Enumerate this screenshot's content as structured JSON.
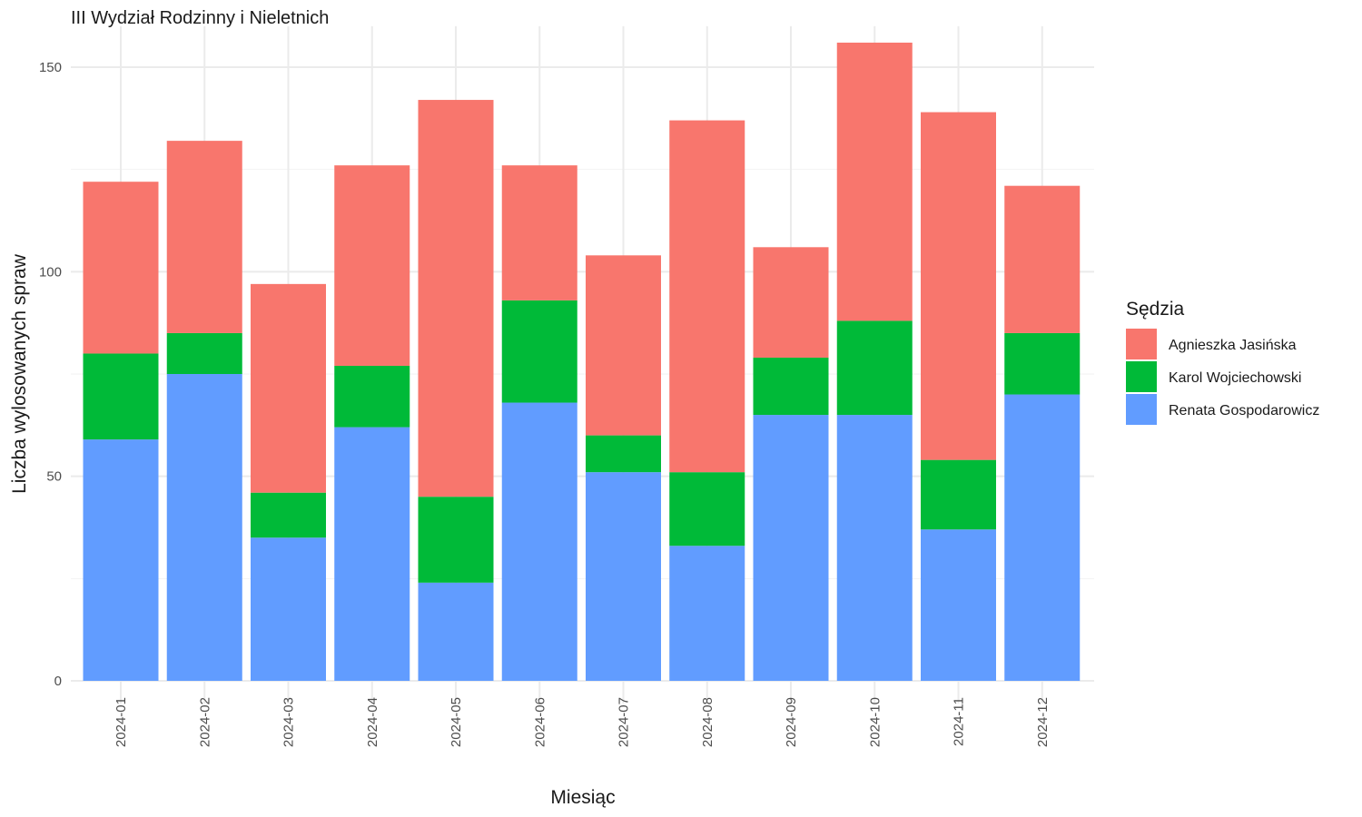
{
  "chart_data": {
    "type": "bar",
    "stacked": true,
    "title": "III Wydział Rodzinny i Nieletnich",
    "xlabel": "Miesiąc",
    "ylabel": "Liczba wylosowanych spraw",
    "ylim": [
      0,
      160
    ],
    "yticks": [
      0,
      50,
      100,
      150
    ],
    "grid": true,
    "legend_title": "Sędzia",
    "legend_position": "right",
    "categories": [
      "2024-01",
      "2024-02",
      "2024-03",
      "2024-04",
      "2024-05",
      "2024-06",
      "2024-07",
      "2024-08",
      "2024-09",
      "2024-10",
      "2024-11",
      "2024-12"
    ],
    "series": [
      {
        "name": "Renata Gospodarowicz",
        "color": "#619CFF",
        "values": [
          59,
          75,
          35,
          62,
          24,
          68,
          51,
          33,
          65,
          65,
          37,
          70
        ]
      },
      {
        "name": "Karol Wojciechowski",
        "color": "#00BA38",
        "values": [
          21,
          10,
          11,
          15,
          21,
          25,
          9,
          18,
          14,
          23,
          17,
          15
        ]
      },
      {
        "name": "Agnieszka Jasińska",
        "color": "#F8766D",
        "values": [
          42,
          47,
          51,
          49,
          97,
          33,
          44,
          86,
          27,
          68,
          85,
          36
        ]
      }
    ],
    "legend_order": [
      "Agnieszka Jasińska",
      "Karol Wojciechowski",
      "Renata Gospodarowicz"
    ]
  }
}
